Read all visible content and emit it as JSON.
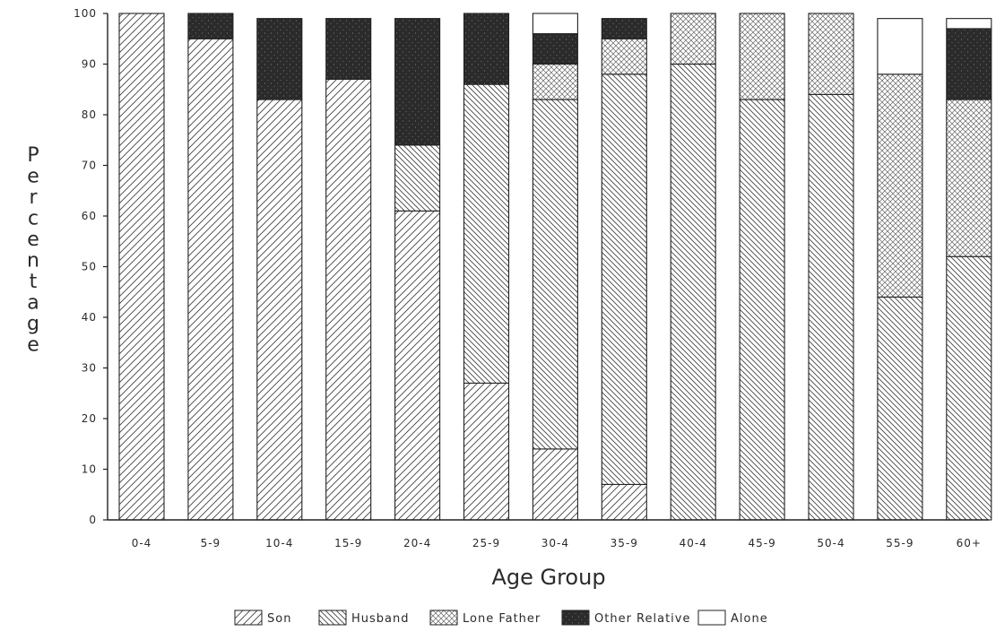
{
  "chart_data": {
    "type": "bar",
    "stacked": true,
    "title": "",
    "xlabel": "Age Group",
    "ylabel": "Percentage",
    "ylim": [
      0,
      100
    ],
    "yticks": [
      0,
      10,
      20,
      30,
      40,
      50,
      60,
      70,
      80,
      90,
      100
    ],
    "grid": false,
    "legend_position": "bottom",
    "categories": [
      "0-4",
      "5-9",
      "10-4",
      "15-9",
      "20-4",
      "25-9",
      "30-4",
      "35-9",
      "40-4",
      "45-9",
      "50-4",
      "55-9",
      "60+"
    ],
    "series": [
      {
        "name": "Son",
        "pattern": "diag-up",
        "values": [
          100,
          95,
          83,
          87,
          61,
          27,
          14,
          7,
          0,
          0,
          0,
          0,
          0
        ]
      },
      {
        "name": "Husband",
        "pattern": "diag-down",
        "values": [
          0,
          0,
          0,
          0,
          13,
          59,
          69,
          81,
          90,
          83,
          84,
          44,
          52
        ]
      },
      {
        "name": "Lone Father",
        "pattern": "crosshatch",
        "values": [
          0,
          0,
          0,
          0,
          0,
          0,
          7,
          7,
          10,
          17,
          16,
          44,
          31
        ]
      },
      {
        "name": "Other Relative",
        "pattern": "dark-speckle",
        "values": [
          0,
          5,
          16,
          12,
          25,
          14,
          6,
          4,
          0,
          0,
          0,
          0,
          14
        ]
      },
      {
        "name": "Alone",
        "pattern": "empty",
        "values": [
          0,
          0,
          0,
          0,
          0,
          0,
          4,
          0,
          0,
          0,
          0,
          11,
          2
        ]
      }
    ]
  }
}
